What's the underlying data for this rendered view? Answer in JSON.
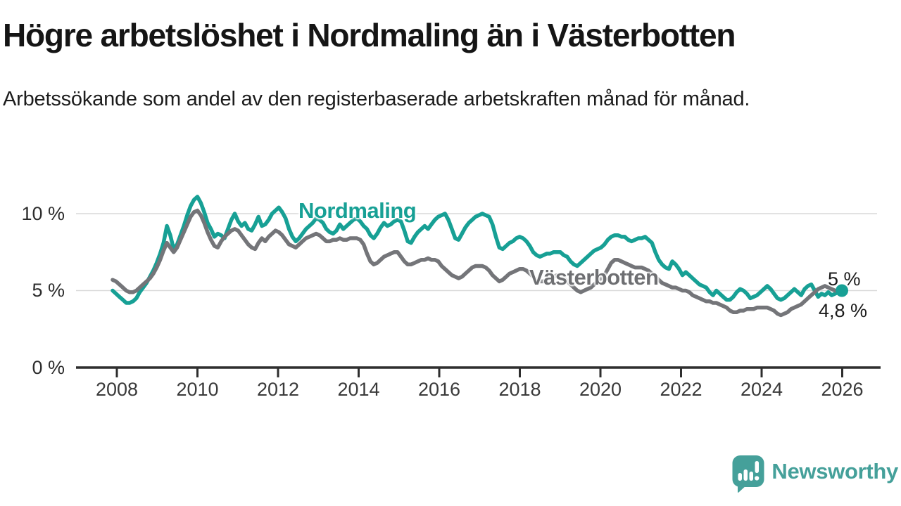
{
  "header": {
    "title": "Högre arbetslöshet i Nordmaling än i Västerbotten",
    "subtitle": "Arbetssökande som andel av den registerbaserade arbetskraften månad för månad."
  },
  "chart_data": {
    "type": "line",
    "unit": "percent",
    "frequency": "monthly",
    "x_start": "2008-01",
    "x_end": "2025-12",
    "grid": "horizontal",
    "ylim": [
      0,
      11.5
    ],
    "x_ticks": [
      "2008",
      "2010",
      "2012",
      "2014",
      "2016",
      "2018",
      "2020",
      "2022",
      "2024",
      "2026"
    ],
    "y_ticks": [
      {
        "label": "0 %",
        "value": 0
      },
      {
        "label": "5 %",
        "value": 5
      },
      {
        "label": "10 %",
        "value": 10
      }
    ],
    "colors": {
      "grid": "#d9d9d9",
      "axis": "#2e2e2e"
    },
    "series": [
      {
        "name": "Nordmaling",
        "label": "Nordmaling",
        "color": "#17A095",
        "end_label": "5 %",
        "latest_value": 5.0,
        "end_dot": true,
        "values": [
          5.0,
          4.8,
          4.6,
          4.4,
          4.2,
          4.2,
          4.3,
          4.5,
          4.9,
          5.2,
          5.5,
          5.9,
          6.3,
          6.8,
          7.4,
          8.1,
          9.2,
          8.6,
          7.7,
          8.0,
          8.6,
          9.2,
          9.9,
          10.5,
          10.9,
          11.1,
          10.7,
          10.1,
          9.4,
          9.0,
          8.5,
          8.7,
          8.6,
          8.4,
          9.0,
          9.6,
          10.0,
          9.5,
          9.2,
          9.4,
          9.0,
          8.9,
          9.3,
          9.8,
          9.2,
          9.3,
          9.6,
          10.0,
          10.2,
          10.4,
          10.1,
          9.7,
          9.0,
          8.5,
          8.2,
          8.4,
          8.7,
          9.0,
          9.2,
          9.4,
          9.7,
          9.6,
          9.4,
          9.0,
          8.8,
          8.7,
          8.9,
          9.3,
          9.0,
          9.2,
          9.4,
          9.6,
          9.7,
          9.5,
          9.2,
          9.0,
          8.6,
          8.4,
          8.7,
          9.1,
          9.4,
          9.2,
          9.3,
          9.5,
          9.6,
          9.5,
          8.9,
          8.2,
          8.1,
          8.5,
          8.8,
          9.0,
          9.2,
          9.0,
          9.3,
          9.6,
          9.8,
          9.9,
          10.0,
          9.6,
          9.0,
          8.4,
          8.3,
          8.7,
          9.1,
          9.4,
          9.6,
          9.8,
          9.9,
          10.0,
          9.9,
          9.8,
          9.3,
          8.5,
          7.8,
          7.7,
          7.9,
          8.1,
          8.2,
          8.4,
          8.5,
          8.4,
          8.2,
          7.9,
          7.5,
          7.3,
          7.2,
          7.3,
          7.4,
          7.4,
          7.5,
          7.5,
          7.5,
          7.3,
          7.2,
          6.9,
          6.7,
          6.6,
          6.8,
          7.0,
          7.2,
          7.4,
          7.6,
          7.7,
          7.8,
          8.0,
          8.3,
          8.5,
          8.6,
          8.6,
          8.5,
          8.5,
          8.3,
          8.2,
          8.3,
          8.4,
          8.4,
          8.5,
          8.3,
          8.1,
          7.5,
          7.0,
          6.7,
          6.5,
          6.4,
          6.9,
          6.7,
          6.4,
          6.0,
          6.2,
          6.0,
          5.8,
          5.6,
          5.4,
          5.3,
          5.2,
          4.9,
          4.7,
          5.0,
          4.8,
          4.6,
          4.4,
          4.4,
          4.6,
          4.9,
          5.1,
          5.0,
          4.8,
          4.5,
          4.6,
          4.7,
          4.9,
          5.1,
          5.3,
          5.1,
          4.8,
          4.5,
          4.4,
          4.5,
          4.7,
          4.9,
          5.1,
          4.9,
          4.7,
          5.1,
          5.3,
          5.4,
          5.0,
          4.6,
          4.8,
          4.7,
          4.9,
          4.7,
          4.8,
          4.9,
          5.0
        ]
      },
      {
        "name": "Västerbotten",
        "label": "Västerbotten",
        "color": "#747579",
        "end_label": "4,8 %",
        "latest_value": 4.8,
        "end_dot": false,
        "values": [
          5.7,
          5.6,
          5.4,
          5.2,
          5.0,
          4.9,
          4.9,
          5.0,
          5.2,
          5.4,
          5.6,
          5.8,
          6.1,
          6.5,
          7.0,
          7.6,
          8.1,
          7.8,
          7.5,
          7.8,
          8.3,
          8.8,
          9.3,
          9.8,
          10.1,
          10.2,
          9.9,
          9.4,
          8.8,
          8.3,
          7.9,
          7.8,
          8.2,
          8.5,
          8.7,
          8.9,
          9.0,
          8.9,
          8.6,
          8.3,
          8.0,
          7.8,
          7.7,
          8.1,
          8.4,
          8.2,
          8.5,
          8.7,
          8.9,
          8.8,
          8.6,
          8.3,
          8.0,
          7.9,
          7.8,
          8.0,
          8.2,
          8.4,
          8.5,
          8.6,
          8.7,
          8.6,
          8.4,
          8.2,
          8.2,
          8.3,
          8.3,
          8.4,
          8.3,
          8.3,
          8.4,
          8.4,
          8.4,
          8.3,
          8.0,
          7.4,
          6.9,
          6.7,
          6.8,
          7.0,
          7.2,
          7.3,
          7.4,
          7.5,
          7.5,
          7.2,
          6.9,
          6.7,
          6.7,
          6.8,
          6.9,
          7.0,
          7.0,
          7.1,
          7.0,
          7.0,
          6.9,
          6.6,
          6.4,
          6.2,
          6.0,
          5.9,
          5.8,
          5.9,
          6.1,
          6.3,
          6.5,
          6.6,
          6.6,
          6.6,
          6.5,
          6.3,
          6.0,
          5.8,
          5.6,
          5.7,
          5.9,
          6.1,
          6.2,
          6.3,
          6.4,
          6.4,
          6.3,
          6.1,
          5.9,
          5.7,
          5.6,
          5.6,
          5.7,
          5.8,
          5.9,
          6.0,
          5.9,
          5.8,
          5.6,
          5.4,
          5.2,
          5.0,
          4.9,
          5.0,
          5.1,
          5.2,
          5.4,
          5.6,
          5.8,
          6.0,
          6.4,
          6.8,
          7.0,
          7.0,
          6.9,
          6.8,
          6.7,
          6.6,
          6.5,
          6.5,
          6.5,
          6.4,
          6.3,
          6.1,
          5.9,
          5.7,
          5.5,
          5.4,
          5.3,
          5.2,
          5.2,
          5.1,
          5.0,
          5.0,
          4.9,
          4.7,
          4.6,
          4.5,
          4.4,
          4.3,
          4.3,
          4.2,
          4.2,
          4.1,
          4.0,
          3.9,
          3.7,
          3.6,
          3.6,
          3.7,
          3.7,
          3.8,
          3.8,
          3.8,
          3.9,
          3.9,
          3.9,
          3.9,
          3.8,
          3.7,
          3.5,
          3.4,
          3.5,
          3.6,
          3.8,
          3.9,
          4.0,
          4.1,
          4.3,
          4.5,
          4.7,
          4.9,
          5.1,
          5.2,
          5.3,
          5.2,
          5.1,
          5.0,
          4.9,
          4.8
        ]
      }
    ]
  },
  "footer": {
    "logo_text": "Newsworthy",
    "logo_color": "#45A09A"
  }
}
